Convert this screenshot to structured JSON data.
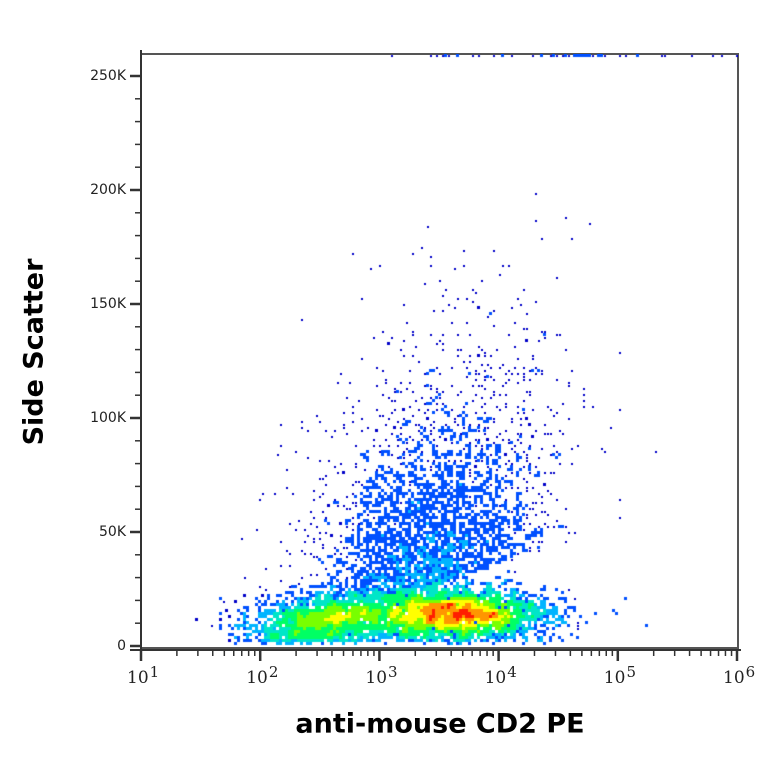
{
  "chart_data": {
    "type": "scatter",
    "subtype": "flow-cytometry-density-dot-plot",
    "title": "",
    "xlabel": "anti-mouse CD2 PE",
    "ylabel": "Side Scatter",
    "x_scale": "log",
    "xlim": [
      10,
      1000000
    ],
    "x_ticks": [
      {
        "base": "10",
        "exp": "1",
        "value": 10
      },
      {
        "base": "10",
        "exp": "2",
        "value": 100
      },
      {
        "base": "10",
        "exp": "3",
        "value": 1000
      },
      {
        "base": "10",
        "exp": "4",
        "value": 10000
      },
      {
        "base": "10",
        "exp": "5",
        "value": 100000
      },
      {
        "base": "10",
        "exp": "6",
        "value": 1000000
      }
    ],
    "y_scale": "linear",
    "ylim": [
      0,
      262144
    ],
    "y_ticks": [
      {
        "label": "0",
        "value": 0
      },
      {
        "label": "50K",
        "value": 50000
      },
      {
        "label": "100K",
        "value": 100000
      },
      {
        "label": "150K",
        "value": 150000
      },
      {
        "label": "200K",
        "value": 200000
      },
      {
        "label": "250K",
        "value": 250000
      }
    ],
    "grid": false,
    "legend": null,
    "color_map": [
      "#0000c8",
      "#0050ff",
      "#00b4ff",
      "#00e6c8",
      "#00ff64",
      "#78ff00",
      "#ffff00",
      "#ff9600",
      "#ff1e00"
    ],
    "populations": [
      {
        "name": "main-positive-cluster",
        "x_log_center": 3.62,
        "x_log_sd": 0.38,
        "y_center": 14000,
        "y_sd": 5500,
        "count": 9000,
        "peak_color": "#ff1e00"
      },
      {
        "name": "dim-shoulder",
        "x_log_center": 2.55,
        "x_log_sd": 0.32,
        "y_center": 11000,
        "y_sd": 6000,
        "count": 4200,
        "peak_color": "#00ff64"
      },
      {
        "name": "high-ssc-spread",
        "x_log_center": 3.4,
        "x_log_sd": 0.45,
        "y_center": 45000,
        "y_sd": 28000,
        "count": 2600,
        "peak_color": "#0050ff"
      },
      {
        "name": "sparse-high-ssc",
        "x_log_center": 3.5,
        "x_log_sd": 0.55,
        "y_center": 130000,
        "y_sd": 45000,
        "count": 650,
        "peak_color": "#0000c8"
      },
      {
        "name": "saturated-top-edge",
        "x_log_center": 4.6,
        "x_log_sd": 0.7,
        "y_center": 259000,
        "y_sd": 0,
        "count": 45,
        "peak_color": "#0000c8"
      }
    ],
    "annotations": []
  }
}
